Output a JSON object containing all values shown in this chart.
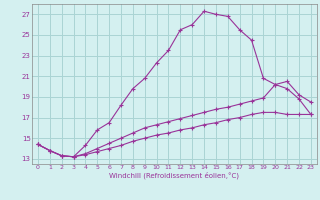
{
  "xlabel": "Windchill (Refroidissement éolien,°C)",
  "bg_color": "#d4f0f0",
  "grid_color": "#aad4d4",
  "line_color": "#993399",
  "xlim": [
    -0.5,
    23.5
  ],
  "ylim": [
    12.5,
    28.0
  ],
  "xticks": [
    0,
    1,
    2,
    3,
    4,
    5,
    6,
    7,
    8,
    9,
    10,
    11,
    12,
    13,
    14,
    15,
    16,
    17,
    18,
    19,
    20,
    21,
    22,
    23
  ],
  "yticks": [
    13,
    15,
    17,
    19,
    21,
    23,
    25,
    27
  ],
  "line1_x": [
    0,
    1,
    2,
    3,
    4,
    5,
    6,
    7,
    8,
    9,
    10,
    11,
    12,
    13,
    14,
    15,
    16,
    17,
    18,
    19,
    20,
    21,
    22,
    23
  ],
  "line1_y": [
    14.4,
    13.8,
    13.3,
    13.2,
    14.3,
    15.8,
    16.5,
    18.2,
    19.8,
    20.8,
    22.3,
    23.5,
    25.5,
    26.0,
    27.3,
    27.0,
    26.8,
    25.5,
    24.5,
    20.8,
    20.2,
    19.8,
    18.8,
    17.3
  ],
  "line2_x": [
    0,
    1,
    2,
    3,
    4,
    5,
    6,
    7,
    8,
    9,
    10,
    11,
    12,
    13,
    14,
    15,
    16,
    17,
    18,
    19,
    20,
    21,
    22,
    23
  ],
  "line2_y": [
    14.4,
    13.8,
    13.3,
    13.2,
    13.5,
    14.0,
    14.5,
    15.0,
    15.5,
    16.0,
    16.3,
    16.6,
    16.9,
    17.2,
    17.5,
    17.8,
    18.0,
    18.3,
    18.6,
    18.9,
    20.2,
    20.5,
    19.2,
    18.5
  ],
  "line3_x": [
    0,
    1,
    2,
    3,
    4,
    5,
    6,
    7,
    8,
    9,
    10,
    11,
    12,
    13,
    14,
    15,
    16,
    17,
    18,
    19,
    20,
    21,
    22,
    23
  ],
  "line3_y": [
    14.4,
    13.8,
    13.3,
    13.2,
    13.4,
    13.7,
    14.0,
    14.3,
    14.7,
    15.0,
    15.3,
    15.5,
    15.8,
    16.0,
    16.3,
    16.5,
    16.8,
    17.0,
    17.3,
    17.5,
    17.5,
    17.3,
    17.3,
    17.3
  ]
}
